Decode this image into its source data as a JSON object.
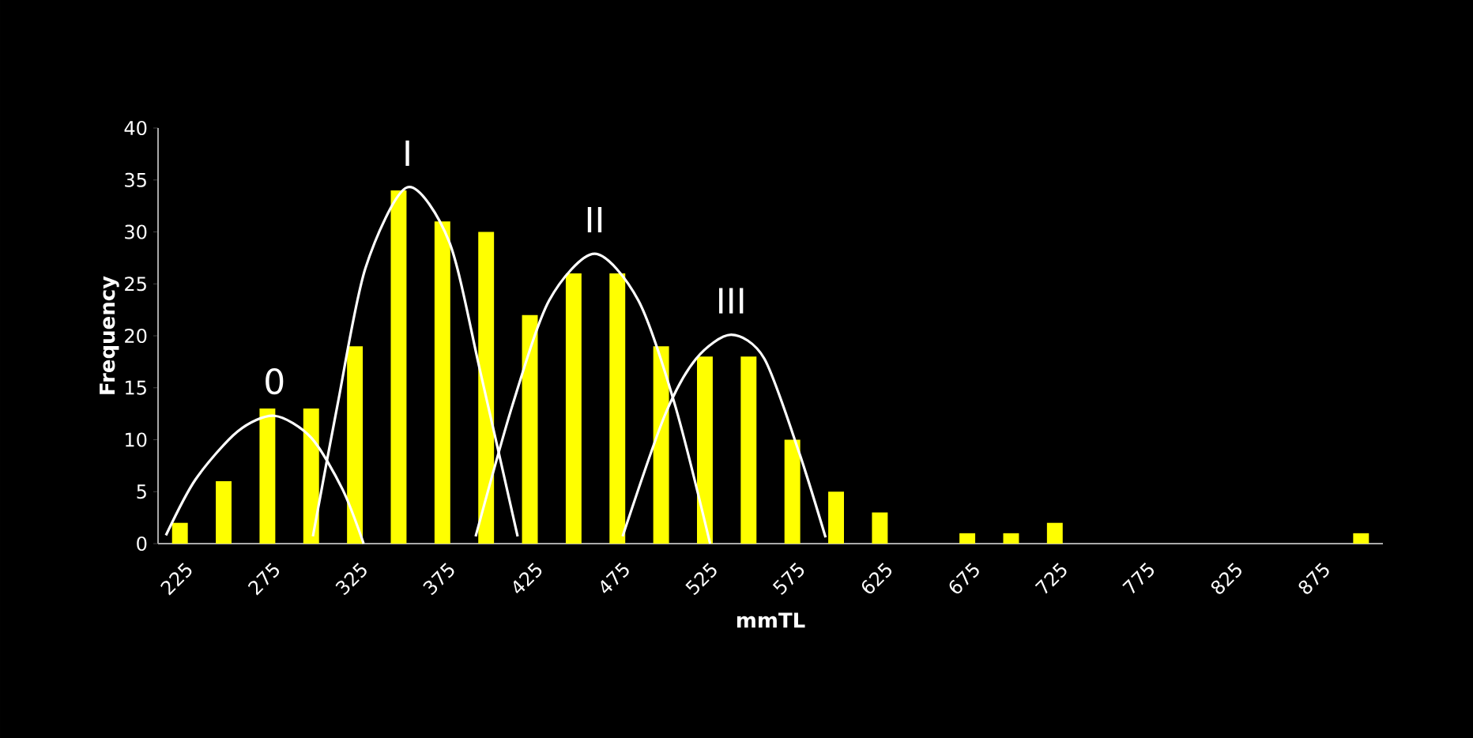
{
  "chart_data": {
    "type": "bar",
    "xlabel": "mmTL",
    "ylabel": "Frequency",
    "x": [
      225,
      250,
      275,
      300,
      325,
      350,
      375,
      400,
      425,
      450,
      475,
      500,
      525,
      550,
      575,
      600,
      625,
      650,
      675,
      700,
      725,
      750,
      775,
      800,
      825,
      850,
      875,
      900
    ],
    "series": [
      {
        "color": "#ffff00",
        "values": [
          2,
          6,
          13,
          13,
          19,
          34,
          31,
          30,
          22,
          26,
          26,
          19,
          18,
          18,
          10,
          5,
          3,
          0,
          1,
          1,
          2,
          0,
          0,
          0,
          0,
          0,
          0,
          1
        ]
      },
      {
        "type": "line",
        "color": "#ffffff",
        "x": [
          217,
          234,
          258,
          279,
          300,
          318,
          330
        ],
        "values": [
          0.8,
          6.2,
          10.8,
          12.3,
          10.2,
          5.2,
          0
        ]
      },
      {
        "type": "line",
        "color": "#ffffff",
        "x": [
          301,
          315,
          331,
          355,
          379,
          397,
          418
        ],
        "values": [
          0.7,
          13.3,
          26.5,
          34.3,
          29,
          16.3,
          0.7
        ]
      },
      {
        "type": "line",
        "color": "#ffffff",
        "x": [
          394,
          415,
          436,
          462,
          487,
          508,
          528
        ],
        "values": [
          0.7,
          13.3,
          23.4,
          27.9,
          23.4,
          13.3,
          0
        ]
      },
      {
        "type": "line",
        "color": "#ffffff",
        "x": [
          478,
          502,
          520,
          540,
          559,
          579,
          594
        ],
        "values": [
          0.7,
          12.3,
          17.8,
          20.1,
          17.8,
          8.7,
          0.6
        ]
      }
    ],
    "annotations": [
      {
        "text": "0",
        "x": 279,
        "y": 12.3
      },
      {
        "text": "I",
        "x": 355,
        "y": 34.3
      },
      {
        "text": "II",
        "x": 462,
        "y": 27.9
      },
      {
        "text": "III",
        "x": 540,
        "y": 20.1
      }
    ],
    "xlim": [
      212.5,
      912.5
    ],
    "ylim": [
      0,
      40
    ],
    "xticks": [
      225,
      275,
      325,
      375,
      425,
      475,
      525,
      575,
      625,
      675,
      725,
      775,
      825,
      875
    ],
    "yticks": [
      0,
      5,
      10,
      15,
      20,
      25,
      30,
      35,
      40
    ],
    "line_style": "solid"
  }
}
